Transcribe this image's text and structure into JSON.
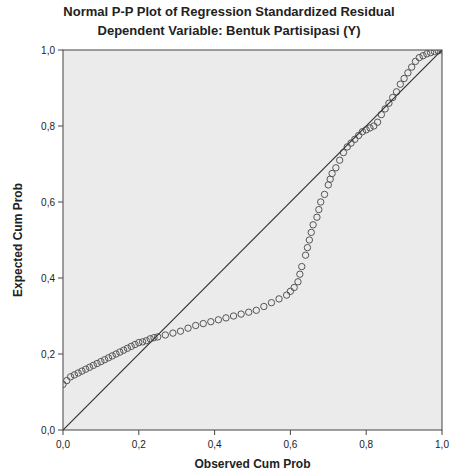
{
  "chart_data": {
    "type": "scatter",
    "title": "Normal P-P Plot of Regression Standardized Residual",
    "subtitle": "Dependent Variable: Bentuk Partisipasi (Y)",
    "x_label": "Observed Cum Prob",
    "y_label": "Expected Cum Prob",
    "xlim": [
      0,
      1
    ],
    "ylim": [
      0,
      1
    ],
    "xticks": [
      {
        "value": 0,
        "label": "0,0"
      },
      {
        "value": 0.2,
        "label": "0,2"
      },
      {
        "value": 0.4,
        "label": "0,4"
      },
      {
        "value": 0.6,
        "label": "0,6"
      },
      {
        "value": 0.8,
        "label": "0,8"
      },
      {
        "value": 1,
        "label": "1,0"
      }
    ],
    "yticks": [
      {
        "value": 0,
        "label": "0,0"
      },
      {
        "value": 0.2,
        "label": "0,2"
      },
      {
        "value": 0.4,
        "label": "0,4"
      },
      {
        "value": 0.6,
        "label": "0,6"
      },
      {
        "value": 0.8,
        "label": "0,8"
      },
      {
        "value": 1,
        "label": "1,0"
      }
    ],
    "grid": false,
    "series": [
      {
        "type": "scatter",
        "marker": "circle",
        "color": "#555555",
        "x": [
          0.0,
          0.01,
          0.02,
          0.03,
          0.04,
          0.05,
          0.06,
          0.07,
          0.08,
          0.09,
          0.1,
          0.11,
          0.12,
          0.13,
          0.14,
          0.15,
          0.16,
          0.17,
          0.18,
          0.19,
          0.2,
          0.21,
          0.22,
          0.23,
          0.24,
          0.25,
          0.27,
          0.29,
          0.31,
          0.33,
          0.35,
          0.37,
          0.39,
          0.41,
          0.43,
          0.45,
          0.47,
          0.49,
          0.51,
          0.53,
          0.55,
          0.57,
          0.59,
          0.6,
          0.61,
          0.62,
          0.625,
          0.63,
          0.64,
          0.645,
          0.65,
          0.655,
          0.66,
          0.67,
          0.675,
          0.68,
          0.69,
          0.7,
          0.705,
          0.71,
          0.72,
          0.73,
          0.74,
          0.75,
          0.76,
          0.77,
          0.78,
          0.79,
          0.8,
          0.81,
          0.82,
          0.83,
          0.84,
          0.85,
          0.86,
          0.87,
          0.88,
          0.89,
          0.9,
          0.91,
          0.92,
          0.93,
          0.94,
          0.95,
          0.96,
          0.97,
          0.98,
          0.99,
          1.0
        ],
        "values": [
          0.12,
          0.13,
          0.14,
          0.145,
          0.15,
          0.155,
          0.16,
          0.165,
          0.17,
          0.175,
          0.18,
          0.185,
          0.19,
          0.195,
          0.2,
          0.205,
          0.21,
          0.215,
          0.22,
          0.225,
          0.23,
          0.232,
          0.235,
          0.24,
          0.243,
          0.245,
          0.25,
          0.255,
          0.26,
          0.268,
          0.275,
          0.28,
          0.285,
          0.29,
          0.295,
          0.3,
          0.305,
          0.31,
          0.315,
          0.325,
          0.335,
          0.345,
          0.355,
          0.365,
          0.375,
          0.39,
          0.41,
          0.43,
          0.46,
          0.48,
          0.5,
          0.52,
          0.54,
          0.56,
          0.58,
          0.6,
          0.62,
          0.645,
          0.66,
          0.675,
          0.69,
          0.71,
          0.73,
          0.745,
          0.755,
          0.765,
          0.775,
          0.785,
          0.79,
          0.795,
          0.8,
          0.81,
          0.83,
          0.845,
          0.86,
          0.875,
          0.89,
          0.91,
          0.925,
          0.94,
          0.955,
          0.97,
          0.98,
          0.985,
          0.99,
          0.993,
          0.996,
          0.998,
          1.0
        ]
      },
      {
        "type": "line",
        "line_style": "solid",
        "color": "#333333",
        "x": [
          0,
          1
        ],
        "values": [
          0,
          1
        ]
      }
    ]
  }
}
